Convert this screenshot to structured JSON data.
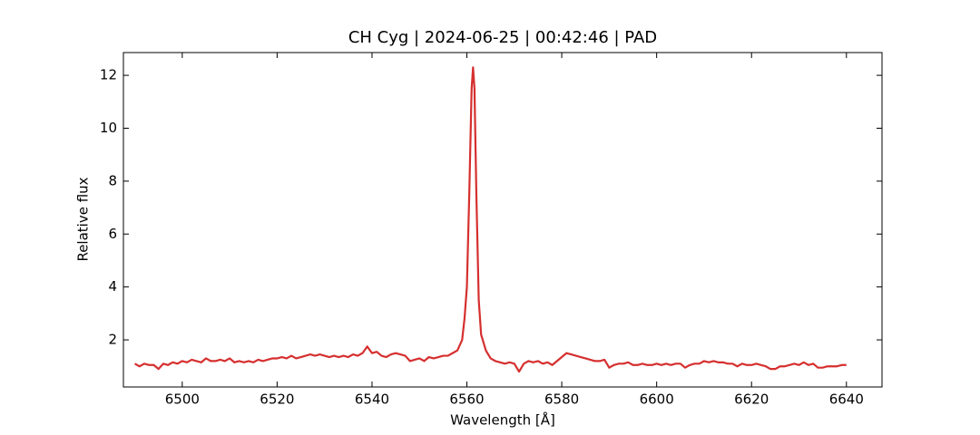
{
  "chart_data": {
    "type": "line",
    "title": "CH Cyg | 2024-06-25 | 00:42:46 | PAD",
    "x_label": "Wavelength [Å]",
    "y_label": "Relative flux",
    "xlim": [
      6487.6,
      6647.5
    ],
    "ylim": [
      0.22,
      12.86
    ],
    "xticks": [
      6500,
      6520,
      6540,
      6560,
      6580,
      6600,
      6620,
      6640
    ],
    "yticks": [
      2,
      4,
      6,
      8,
      10,
      12
    ],
    "x": [
      6490,
      6491,
      6492,
      6493,
      6494,
      6495,
      6496,
      6497,
      6498,
      6499,
      6500,
      6501,
      6502,
      6503,
      6504,
      6505,
      6506,
      6507,
      6508,
      6509,
      6510,
      6511,
      6512,
      6513,
      6514,
      6515,
      6516,
      6517,
      6518,
      6519,
      6520,
      6521,
      6522,
      6523,
      6524,
      6525,
      6526,
      6527,
      6528,
      6529,
      6530,
      6531,
      6532,
      6533,
      6534,
      6535,
      6536,
      6537,
      6538,
      6539,
      6540,
      6541,
      6542,
      6543,
      6544,
      6545,
      6546,
      6547,
      6548,
      6549,
      6550,
      6551,
      6552,
      6553,
      6554,
      6555,
      6556,
      6557,
      6558,
      6559,
      6559.5,
      6560,
      6560.5,
      6561,
      6561.3,
      6561.6,
      6562,
      6562.5,
      6563,
      6564,
      6565,
      6566,
      6567,
      6568,
      6569,
      6570,
      6571,
      6572,
      6573,
      6574,
      6575,
      6576,
      6577,
      6578,
      6579,
      6580,
      6581,
      6582,
      6583,
      6584,
      6585,
      6586,
      6587,
      6588,
      6589,
      6590,
      6591,
      6592,
      6593,
      6594,
      6595,
      6596,
      6597,
      6598,
      6599,
      6600,
      6601,
      6602,
      6603,
      6604,
      6605,
      6606,
      6607,
      6608,
      6609,
      6610,
      6611,
      6612,
      6613,
      6614,
      6615,
      6616,
      6617,
      6618,
      6619,
      6620,
      6621,
      6622,
      6623,
      6624,
      6625,
      6626,
      6627,
      6628,
      6629,
      6630,
      6631,
      6632,
      6633,
      6634,
      6635,
      6636,
      6637,
      6638,
      6639,
      6640
    ],
    "series": [
      {
        "color": "#d62f2f",
        "values": [
          1.1,
          1.0,
          1.1,
          1.05,
          1.05,
          0.9,
          1.1,
          1.05,
          1.15,
          1.1,
          1.2,
          1.15,
          1.25,
          1.2,
          1.15,
          1.3,
          1.2,
          1.2,
          1.25,
          1.2,
          1.3,
          1.15,
          1.2,
          1.15,
          1.2,
          1.15,
          1.25,
          1.2,
          1.25,
          1.3,
          1.3,
          1.35,
          1.3,
          1.4,
          1.3,
          1.35,
          1.4,
          1.45,
          1.4,
          1.45,
          1.4,
          1.35,
          1.4,
          1.35,
          1.4,
          1.35,
          1.45,
          1.4,
          1.5,
          1.75,
          1.5,
          1.55,
          1.4,
          1.35,
          1.45,
          1.5,
          1.45,
          1.4,
          1.2,
          1.25,
          1.3,
          1.2,
          1.35,
          1.3,
          1.35,
          1.4,
          1.4,
          1.5,
          1.6,
          2.0,
          2.8,
          4.0,
          7.5,
          11.5,
          12.3,
          11.5,
          7.5,
          3.5,
          2.2,
          1.6,
          1.3,
          1.2,
          1.15,
          1.1,
          1.15,
          1.1,
          0.8,
          1.1,
          1.2,
          1.15,
          1.2,
          1.1,
          1.15,
          1.05,
          1.2,
          1.35,
          1.5,
          1.45,
          1.4,
          1.35,
          1.3,
          1.25,
          1.2,
          1.2,
          1.25,
          0.95,
          1.05,
          1.1,
          1.1,
          1.15,
          1.05,
          1.05,
          1.1,
          1.05,
          1.05,
          1.1,
          1.05,
          1.1,
          1.05,
          1.1,
          1.1,
          0.95,
          1.05,
          1.1,
          1.1,
          1.2,
          1.15,
          1.2,
          1.15,
          1.15,
          1.1,
          1.1,
          1.0,
          1.1,
          1.05,
          1.05,
          1.1,
          1.05,
          1.0,
          0.9,
          0.9,
          1.0,
          1.0,
          1.05,
          1.1,
          1.05,
          1.15,
          1.05,
          1.1,
          0.95,
          0.95,
          1.0,
          1.0,
          1.0,
          1.05,
          1.05
        ]
      }
    ]
  }
}
